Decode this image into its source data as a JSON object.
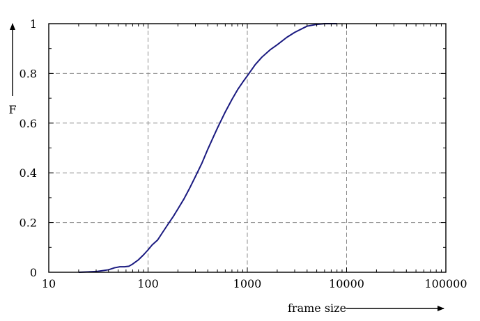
{
  "chart_data": {
    "type": "line",
    "title": "",
    "xlabel": "frame size",
    "ylabel": "F",
    "xscale": "log",
    "xlim": [
      10,
      100000
    ],
    "ylim": [
      0,
      1
    ],
    "grid": true,
    "legend": "none",
    "line_color": "#1a1a80",
    "x_tick_values": [
      10,
      100,
      1000,
      10000,
      100000
    ],
    "x_tick_labels": [
      "10",
      "100",
      "1000",
      "10000",
      "100000"
    ],
    "y_tick_values": [
      0,
      0.2,
      0.4,
      0.6,
      0.8,
      1
    ],
    "y_tick_labels": [
      "0",
      "0.2",
      "0.4",
      "0.6",
      "0.8",
      "1"
    ],
    "series": [
      {
        "x": [
          20,
          30,
          40,
          46,
          52,
          58,
          64,
          70,
          80,
          90,
          100,
          110,
          125,
          140,
          160,
          180,
          200,
          230,
          260,
          300,
          350,
          400,
          450,
          500,
          600,
          700,
          800,
          900,
          1000,
          1200,
          1400,
          1700,
          2000,
          2500,
          3000,
          4000,
          5000,
          6000,
          8000
        ],
        "y": [
          0,
          0.003,
          0.01,
          0.018,
          0.022,
          0.022,
          0.024,
          0.033,
          0.05,
          0.07,
          0.09,
          0.11,
          0.13,
          0.16,
          0.195,
          0.225,
          0.255,
          0.295,
          0.335,
          0.385,
          0.44,
          0.495,
          0.54,
          0.58,
          0.645,
          0.695,
          0.735,
          0.765,
          0.79,
          0.835,
          0.865,
          0.895,
          0.915,
          0.945,
          0.965,
          0.99,
          0.997,
          1.0,
          1.0
        ]
      }
    ]
  }
}
